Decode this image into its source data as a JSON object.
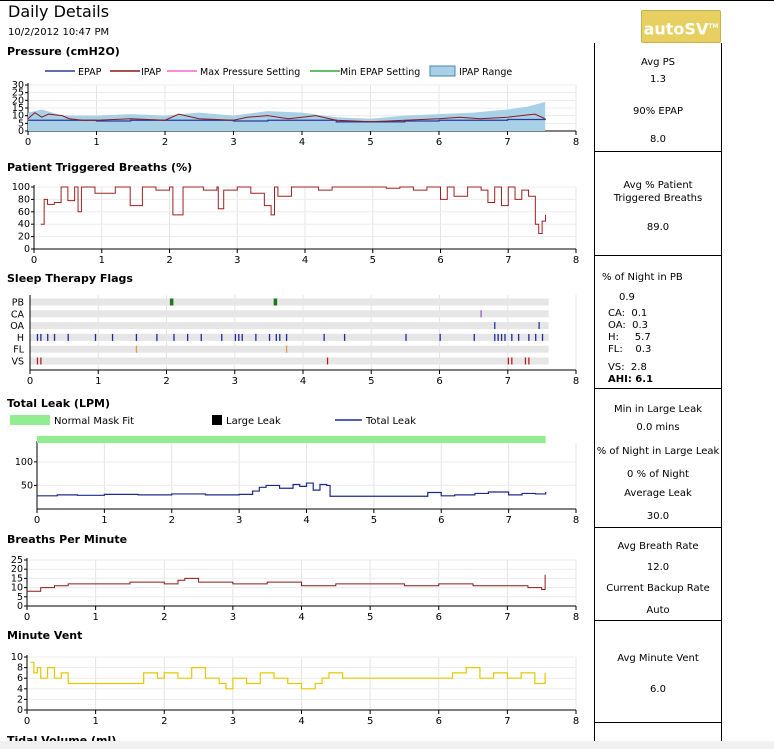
{
  "header": {
    "title": "Daily Details",
    "date": "10/2/2012 10:47 PM",
    "logo": "autoSV",
    "logo_tm": "TM"
  },
  "colors": {
    "epap": "#2b3a9a",
    "ipap": "#8b1a1a",
    "max_pressure": "#ff66cc",
    "min_epap": "#33aa33",
    "ipap_range": "#a8d0e6",
    "triggered": "#a02020",
    "leak": "#1e2a8a",
    "normal_mask_fit": "#90ee90",
    "large_leak": "#000000",
    "bpm": "#8b1a1a",
    "minute_vent": "#e6c800",
    "pb_flag": "#1a7a1a",
    "ca_flag": "#9a5ad0",
    "oa_flag": "#1e3aa0",
    "h_flag": "#1e2a9a",
    "fl_flag": "#e89a40",
    "vs_flag": "#b02020"
  },
  "sections": {
    "pressure": "Pressure (cmH2O)",
    "triggered": "Patient Triggered Breaths (%)",
    "flags": "Sleep Therapy Flags",
    "leak": "Total Leak (LPM)",
    "bpm": "Breaths Per Minute",
    "minute_vent": "Minute Vent",
    "tidal_volume": "Tidal Volume (ml)"
  },
  "legends": {
    "pressure": [
      "EPAP",
      "IPAP",
      "Max Pressure Setting",
      "Min EPAP Setting",
      "IPAP Range"
    ],
    "leak": [
      "Normal Mask Fit",
      "Large Leak",
      "Total Leak"
    ]
  },
  "sidebar": {
    "pressure": {
      "avg_ps_label": "Avg PS",
      "avg_ps": "1.3",
      "epap90_label": "90% EPAP",
      "epap90": "8.0"
    },
    "triggered": {
      "label1": "Avg % Patient",
      "label2": "Triggered Breaths",
      "value": "89.0"
    },
    "flags": {
      "pb_label": "% of Night in PB",
      "pb": "0.9",
      "ca": "CA:  0.1",
      "oa": "OA:  0.3",
      "h": "H:     5.7",
      "fl": "FL:    0.3",
      "vs": "VS:  2.8",
      "ahi": "AHI: 6.1"
    },
    "leak": {
      "min_large_label": "Min in Large Leak",
      "min_large": "0.0 mins",
      "pct_large_label": "% of Night in Large Leak",
      "pct_large": "0 % of Night",
      "avg_leak_label": "Average Leak",
      "avg_leak": "30.0"
    },
    "bpm": {
      "avg_label": "Avg Breath Rate",
      "avg": "12.0",
      "backup_label": "Current Backup Rate",
      "backup": "Auto"
    },
    "minute_vent": {
      "avg_label": "Avg Minute Vent",
      "avg": "6.0"
    }
  },
  "chart_data": [
    {
      "type": "line",
      "title": "Pressure (cmH2O)",
      "xlim": [
        0,
        8
      ],
      "ylim": [
        0,
        30
      ],
      "xticks": [
        0,
        1,
        2,
        3,
        4,
        5,
        6,
        7,
        8
      ],
      "yticks": [
        0,
        5,
        10,
        15,
        20,
        25,
        30
      ],
      "series": [
        {
          "name": "EPAP",
          "x": [
            0,
            0.5,
            1,
            1.5,
            2,
            2.5,
            3,
            3.5,
            4,
            4.5,
            5,
            5.5,
            6,
            6.5,
            7,
            7.55
          ],
          "y": [
            7,
            7,
            6.5,
            7,
            7,
            7,
            6.5,
            7,
            7,
            6,
            6,
            6.5,
            7,
            7,
            7.5,
            8
          ]
        },
        {
          "name": "IPAP",
          "x": [
            0,
            0.1,
            0.2,
            0.3,
            0.5,
            0.6,
            0.8,
            1,
            1.5,
            2,
            2.2,
            2.5,
            3,
            3.2,
            3.5,
            3.8,
            4,
            4.2,
            4.5,
            5,
            5.5,
            6,
            6.3,
            6.6,
            7,
            7.2,
            7.4,
            7.55
          ],
          "y": [
            8,
            12,
            9,
            11,
            10,
            8,
            7,
            7,
            8,
            7,
            11,
            8,
            7,
            9,
            10,
            8,
            9,
            10,
            7,
            6,
            7,
            8,
            9,
            8,
            9,
            10,
            11,
            8
          ]
        },
        {
          "name": "IPAP Range",
          "x": [
            0,
            0.2,
            0.5,
            1,
            1.5,
            2,
            2.5,
            3,
            3.5,
            4,
            4.5,
            5,
            5.5,
            6,
            6.5,
            7,
            7.3,
            7.55
          ],
          "y": [
            12,
            14,
            10,
            10,
            11,
            10,
            12,
            10,
            13,
            12,
            9,
            8,
            10,
            11,
            12,
            14,
            16,
            19
          ]
        }
      ]
    },
    {
      "type": "line",
      "title": "Patient Triggered Breaths (%)",
      "xlim": [
        0,
        8
      ],
      "ylim": [
        0,
        100
      ],
      "xticks": [
        0,
        1,
        2,
        3,
        4,
        5,
        6,
        7,
        8
      ],
      "yticks": [
        0,
        20,
        40,
        60,
        80,
        100
      ],
      "series": [
        {
          "name": "Patient Triggered Breaths",
          "x": [
            0.1,
            0.15,
            0.2,
            0.3,
            0.4,
            0.5,
            0.6,
            0.65,
            0.7,
            0.9,
            1.2,
            1.4,
            1.42,
            1.6,
            1.8,
            2.0,
            2.05,
            2.2,
            2.5,
            2.7,
            2.72,
            2.8,
            3.0,
            3.2,
            3.4,
            3.5,
            3.55,
            3.6,
            3.8,
            4.0,
            4.2,
            4.4,
            4.6,
            4.8,
            5.0,
            5.2,
            5.4,
            5.6,
            5.8,
            6.0,
            6.1,
            6.2,
            6.4,
            6.6,
            6.7,
            6.8,
            6.9,
            7.0,
            7.1,
            7.2,
            7.3,
            7.4,
            7.45,
            7.5,
            7.55
          ],
          "y": [
            40,
            80,
            72,
            75,
            100,
            78,
            100,
            60,
            100,
            90,
            100,
            100,
            70,
            100,
            95,
            100,
            55,
            100,
            95,
            100,
            65,
            95,
            100,
            90,
            70,
            55,
            100,
            85,
            100,
            100,
            95,
            100,
            100,
            100,
            100,
            98,
            100,
            95,
            100,
            80,
            100,
            85,
            100,
            95,
            75,
            100,
            70,
            100,
            80,
            95,
            85,
            40,
            25,
            45,
            55
          ]
        }
      ]
    },
    {
      "type": "scatter",
      "title": "Sleep Therapy Flags",
      "xlim": [
        0,
        8
      ],
      "xticks": [
        0,
        1,
        2,
        3,
        4,
        5,
        6,
        7,
        8
      ],
      "rows": [
        "PB",
        "CA",
        "OA",
        "H",
        "FL",
        "VS"
      ],
      "events": {
        "PB": [
          2.05,
          3.57
        ],
        "CA": [
          6.6
        ],
        "OA": [
          6.8,
          7.45
        ],
        "H": [
          0.1,
          0.15,
          0.25,
          0.35,
          0.55,
          0.95,
          1.2,
          1.55,
          1.85,
          2.1,
          2.3,
          2.5,
          2.8,
          3.0,
          3.05,
          3.1,
          3.3,
          3.5,
          3.6,
          3.65,
          3.75,
          4.3,
          4.6,
          5.5,
          6.0,
          6.5,
          6.8,
          6.85,
          6.9,
          6.95,
          7.05,
          7.15,
          7.3,
          7.4,
          7.5
        ],
        "FL": [
          1.55,
          3.75
        ],
        "VS": [
          0.1,
          0.15,
          4.35,
          7.0,
          7.05,
          7.25,
          7.3
        ]
      }
    },
    {
      "type": "line",
      "title": "Total Leak (LPM)",
      "xlim": [
        0,
        8
      ],
      "ylim": [
        0,
        140
      ],
      "xticks": [
        0,
        1,
        2,
        3,
        4,
        5,
        6,
        7,
        8
      ],
      "yticks": [
        50,
        100
      ],
      "series": [
        {
          "name": "Total Leak",
          "x": [
            0,
            0.3,
            0.6,
            1.0,
            1.5,
            2.0,
            2.5,
            3.0,
            3.2,
            3.3,
            3.4,
            3.6,
            3.8,
            3.9,
            4.0,
            4.1,
            4.2,
            4.3,
            4.35,
            4.5,
            5.0,
            5.5,
            5.8,
            6.0,
            6.2,
            6.5,
            6.7,
            7.0,
            7.2,
            7.4,
            7.55
          ],
          "y": [
            28,
            30,
            29,
            31,
            30,
            32,
            30,
            31,
            38,
            46,
            50,
            44,
            52,
            48,
            55,
            40,
            52,
            50,
            27,
            27,
            27,
            27,
            35,
            28,
            30,
            33,
            36,
            30,
            33,
            32,
            36
          ]
        }
      ]
    },
    {
      "type": "line",
      "title": "Breaths Per Minute",
      "xlim": [
        0,
        8
      ],
      "ylim": [
        0,
        25
      ],
      "xticks": [
        0,
        1,
        2,
        3,
        4,
        5,
        6,
        7,
        8
      ],
      "yticks": [
        0,
        5,
        10,
        15,
        20,
        25
      ],
      "series": [
        {
          "name": "Breaths Per Minute",
          "x": [
            0,
            0.2,
            0.4,
            0.6,
            1.0,
            1.5,
            2.0,
            2.2,
            2.3,
            2.5,
            3.0,
            3.5,
            4.0,
            4.5,
            5.0,
            5.5,
            6.0,
            6.5,
            7.0,
            7.3,
            7.5,
            7.55
          ],
          "y": [
            8,
            10,
            11,
            12,
            12,
            13,
            12,
            14,
            15,
            13,
            12,
            13,
            11,
            12,
            12,
            11,
            12,
            11,
            11,
            10,
            9,
            17
          ]
        }
      ]
    },
    {
      "type": "line",
      "title": "Minute Vent",
      "xlim": [
        0,
        8
      ],
      "ylim": [
        0,
        10
      ],
      "xticks": [
        0,
        1,
        2,
        3,
        4,
        5,
        6,
        7,
        8
      ],
      "yticks": [
        0,
        2,
        4,
        6,
        8,
        10
      ],
      "series": [
        {
          "name": "Minute Vent",
          "x": [
            0.05,
            0.1,
            0.15,
            0.2,
            0.3,
            0.4,
            0.5,
            0.6,
            0.8,
            1.0,
            1.5,
            1.7,
            1.9,
            2.0,
            2.2,
            2.4,
            2.6,
            2.8,
            2.9,
            3.0,
            3.2,
            3.4,
            3.6,
            3.8,
            4.0,
            4.2,
            4.3,
            4.4,
            4.6,
            5.0,
            5.5,
            6.0,
            6.2,
            6.4,
            6.6,
            6.8,
            7.0,
            7.2,
            7.4,
            7.55
          ],
          "y": [
            9,
            7,
            8,
            6,
            8,
            6,
            7,
            5,
            5,
            5,
            5,
            7,
            6,
            7,
            6,
            8,
            6,
            5,
            4,
            6,
            5,
            7,
            6,
            5,
            4,
            5,
            6,
            7,
            6,
            6,
            6,
            6,
            7,
            8,
            6,
            7,
            6,
            7,
            5,
            7
          ]
        }
      ]
    }
  ]
}
